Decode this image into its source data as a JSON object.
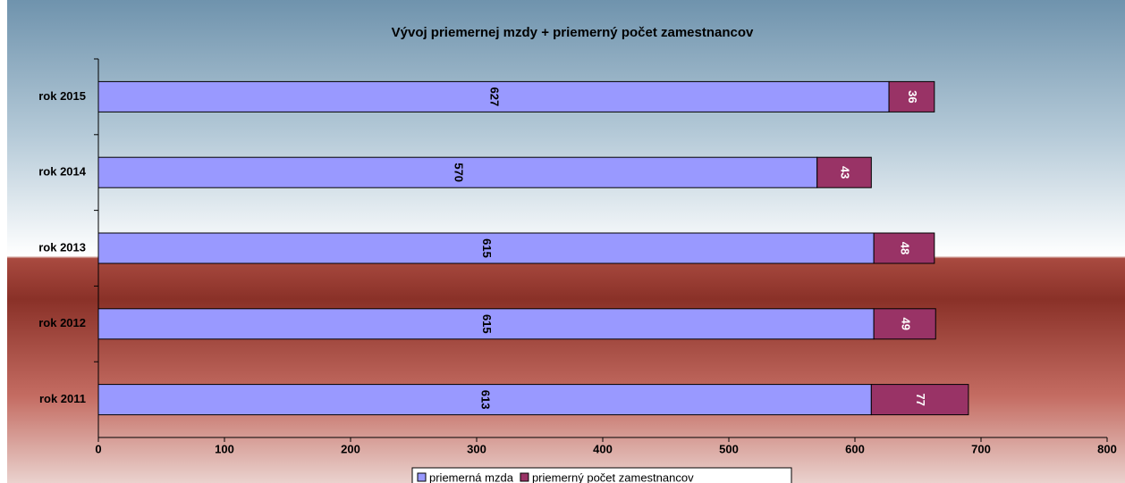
{
  "chart_data": {
    "type": "stacked_barh",
    "title": "Vývoj priemernej mzdy + priemerný počet zamestnancov",
    "categories": [
      "rok 2015",
      "rok 2014",
      "rok 2013",
      "rok 2012",
      "rok 2011"
    ],
    "series": [
      {
        "name": "priemerná mzda",
        "color": "#9999ff",
        "values": [
          627,
          570,
          615,
          615,
          613
        ]
      },
      {
        "name": "priemerný počet zamestnancov",
        "color": "#993366",
        "values": [
          36,
          43,
          48,
          49,
          77
        ]
      }
    ],
    "xlim": [
      0,
      800
    ],
    "xticks": [
      0,
      100,
      200,
      300,
      400,
      500,
      600,
      700,
      800
    ],
    "legend": "bottom"
  }
}
